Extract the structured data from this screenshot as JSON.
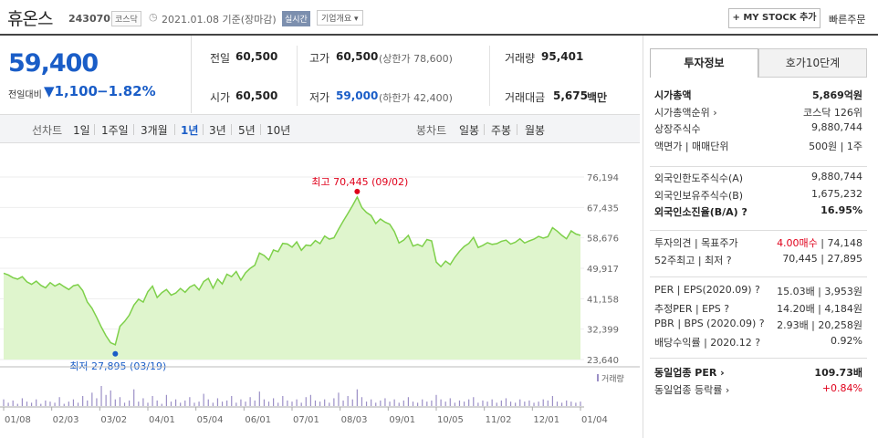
{
  "header": {
    "name": "휴온스",
    "code": "243070",
    "market": "코스닥",
    "date": "2021.01.08 기준(장마감)",
    "live_badge": "실시간",
    "overview": "기업개요 ▾",
    "mystock_button": "+ MY STOCK 추가",
    "quick_order": "빠른주문"
  },
  "price": {
    "current": "59,400",
    "change_label": "전일대비",
    "change": "▼1,100",
    "rate": "−1.82%"
  },
  "quote": {
    "prev_label": "전일",
    "prev": "60,500",
    "high_label": "고가",
    "high": "60,500",
    "upper_limit": "(상한가 78,600)",
    "volume_label": "거래량",
    "volume": "95,401",
    "open_label": "시가",
    "open": "60,500",
    "low_label": "저가",
    "low": "59,000",
    "lower_limit": "(하한가 42,400)",
    "amount_label": "거래대금",
    "amount": "5,675",
    "amount_unit": "백만"
  },
  "tabs": {
    "line_label": "선차트",
    "line": [
      "1일",
      "1주일",
      "3개월",
      "1년",
      "3년",
      "5년",
      "10년"
    ],
    "selected": "1년",
    "candle_label": "봉차트",
    "candle": [
      "일봉",
      "주봉",
      "월봉"
    ]
  },
  "right": {
    "tab_info": "투자정보",
    "tab_hoga": "호가10단계",
    "rows1": [
      [
        "시가총액",
        "5,869억원",
        true
      ],
      [
        "시가총액순위 ›",
        "코스닥 126위",
        false
      ],
      [
        "상장주식수",
        "9,880,744",
        false
      ],
      [
        "액면가 | 매매단위",
        "500원 | 1주",
        false
      ]
    ],
    "rows2": [
      [
        "외국인한도주식수(A)",
        "9,880,744",
        false
      ],
      [
        "외국인보유주식수(B)",
        "1,675,232",
        false
      ],
      [
        "외국인소진율(B/A) ?",
        "16.95%",
        true
      ]
    ],
    "rows3": [
      [
        "투자의견 | 목표주가",
        "4.00매수 | 74,148",
        false
      ],
      [
        "52주최고 | 최저 ?",
        "70,445 | 27,895",
        false
      ]
    ],
    "rows4": [
      [
        "PER | EPS(2020.09) ?",
        "15.03배 | 3,953원",
        false
      ],
      [
        "추정PER | EPS ?",
        "14.20배 | 4,184원",
        false
      ],
      [
        "PBR | BPS (2020.09) ?",
        "2.93배 | 20,258원",
        false
      ],
      [
        "배당수익률 | 2020.12 ?",
        "0.92%",
        false
      ]
    ],
    "rows5": [
      [
        "동일업종 PER ›",
        "109.73배",
        true
      ],
      [
        "동일업종 등락률 ›",
        "+0.84%",
        false
      ]
    ],
    "invest_opinion_color": "#e0001b",
    "sector_rate_color": "#e0001b"
  },
  "chart_data": {
    "type": "area",
    "title": "",
    "y_ticks": [
      "76,194",
      "67,435",
      "58,676",
      "49,917",
      "41,158",
      "32,399",
      "23,640"
    ],
    "ylim": [
      23640,
      76194
    ],
    "x_ticks": [
      "01/08",
      "02/03",
      "03/02",
      "04/01",
      "05/04",
      "06/01",
      "07/01",
      "08/03",
      "09/01",
      "10/05",
      "11/02",
      "12/01",
      "01/04"
    ],
    "high_annotation": "최고 70,445 (09/02)",
    "low_annotation": "최저 27,895 (03/19)",
    "high_value": 70445,
    "low_value": 27895,
    "volume_label": "거래량",
    "line_color": "#7ed04a",
    "fill_color": "#dff5cd",
    "high_color": "#e0001b",
    "low_color": "#1a5dc7",
    "series": [
      {
        "values": [
          48500,
          48000,
          47200,
          46800,
          47500,
          46000,
          45300,
          46200,
          45000,
          44300,
          45800,
          44800,
          45500,
          44600,
          43800,
          44900,
          45200,
          43500,
          40200,
          38400,
          35800,
          33000,
          30500,
          28500,
          27895,
          33200,
          34600,
          36400,
          39300,
          41000,
          40200,
          43200,
          44800,
          41500,
          42900,
          43800,
          42200,
          42800,
          44100,
          43000,
          44500,
          45200,
          43700,
          46100,
          47000,
          44200,
          46800,
          45400,
          48200,
          47500,
          49000,
          46500,
          48600,
          49900,
          50800,
          54300,
          53600,
          52300,
          55200,
          54700,
          57100,
          56900,
          56000,
          57500,
          55100,
          56600,
          56400,
          57900,
          57000,
          59200,
          58300,
          58700,
          61200,
          63500,
          65700,
          68000,
          70445,
          67400,
          66000,
          65100,
          62800,
          64100,
          63200,
          62600,
          60500,
          57200,
          58000,
          59400,
          56300,
          56800,
          56200,
          58200,
          57800,
          51700,
          50400,
          52000,
          51000,
          53100,
          54800,
          56200,
          57100,
          58800,
          55900,
          56500,
          57300,
          56800,
          57000,
          57700,
          58000,
          56900,
          57400,
          58400,
          57200,
          57800,
          58300,
          59100,
          58600,
          59000,
          61600,
          60600,
          59400,
          58400,
          60700,
          59800,
          59400
        ]
      },
      {
        "name": "거래량",
        "values": [
          6,
          3,
          5,
          2,
          7,
          4,
          3,
          6,
          2,
          5,
          4,
          3,
          8,
          2,
          4,
          6,
          3,
          9,
          5,
          12,
          7,
          18,
          10,
          14,
          6,
          8,
          3,
          5,
          15,
          4,
          7,
          3,
          9,
          5,
          2,
          10,
          4,
          6,
          3,
          5,
          8,
          3,
          4,
          11,
          6,
          3,
          7,
          4,
          5,
          9,
          3,
          6,
          4,
          8,
          5,
          13,
          6,
          4,
          7,
          3,
          9,
          5,
          4,
          6,
          3,
          8,
          10,
          5,
          4,
          6,
          3,
          7,
          12,
          5,
          9,
          6,
          15,
          8,
          4,
          6,
          3,
          5,
          7,
          4,
          6,
          3,
          5,
          8,
          4,
          3,
          6,
          4,
          5,
          10,
          6,
          4,
          7,
          3,
          5,
          4,
          6,
          8,
          3,
          5,
          4,
          6,
          3,
          5,
          7,
          4,
          3,
          6,
          4,
          5,
          3,
          4,
          6,
          5,
          9,
          4,
          3,
          5,
          4,
          3,
          4
        ]
      }
    ]
  }
}
